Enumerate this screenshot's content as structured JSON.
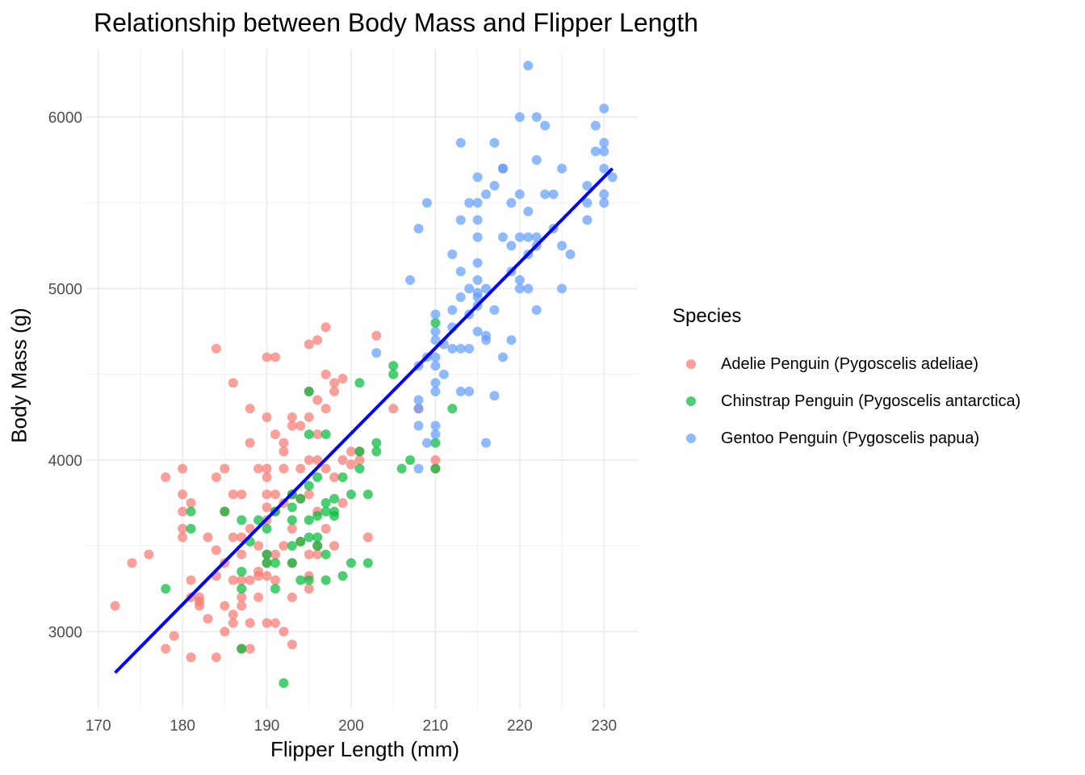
{
  "chart_data": {
    "type": "scatter",
    "title": "Relationship between Body Mass and Flipper Length",
    "xlabel": "Flipper Length (mm)",
    "ylabel": "Body Mass (g)",
    "xlim": [
      168.5,
      234
    ],
    "ylim": [
      2550,
      6400
    ],
    "x_ticks": [
      170,
      180,
      190,
      200,
      210,
      220,
      230
    ],
    "y_ticks": [
      3000,
      4000,
      5000,
      6000
    ],
    "grid": true,
    "legend": {
      "title": "Species",
      "placement": "right"
    },
    "trendline": {
      "type": "linear",
      "color": "#0000ff",
      "points": [
        [
          172,
          2760
        ],
        [
          231,
          5700
        ]
      ]
    },
    "series": [
      {
        "name": "Adelie Penguin (Pygoscelis adeliae)",
        "color": "#f8766d",
        "points": [
          [
            172,
            3150
          ],
          [
            174,
            3400
          ],
          [
            176,
            3450
          ],
          [
            178,
            3900
          ],
          [
            178,
            2900
          ],
          [
            179,
            2975
          ],
          [
            180,
            3950
          ],
          [
            180,
            3800
          ],
          [
            180,
            3700
          ],
          [
            180,
            3550
          ],
          [
            180,
            3600
          ],
          [
            181,
            3750
          ],
          [
            181,
            3300
          ],
          [
            181,
            2850
          ],
          [
            181,
            3200
          ],
          [
            182,
            3175
          ],
          [
            182,
            3150
          ],
          [
            182,
            3200
          ],
          [
            183,
            3550
          ],
          [
            183,
            3075
          ],
          [
            184,
            3900
          ],
          [
            184,
            4650
          ],
          [
            184,
            3475
          ],
          [
            184,
            3325
          ],
          [
            184,
            2850
          ],
          [
            185,
            3950
          ],
          [
            185,
            3700
          ],
          [
            185,
            3400
          ],
          [
            185,
            3150
          ],
          [
            185,
            3000
          ],
          [
            186,
            4450
          ],
          [
            186,
            3800
          ],
          [
            186,
            3550
          ],
          [
            186,
            3300
          ],
          [
            186,
            3100
          ],
          [
            186,
            3050
          ],
          [
            187,
            3800
          ],
          [
            187,
            3550
          ],
          [
            187,
            3450
          ],
          [
            187,
            3300
          ],
          [
            187,
            3200
          ],
          [
            187,
            3150
          ],
          [
            187,
            2900
          ],
          [
            188,
            4300
          ],
          [
            188,
            4100
          ],
          [
            188,
            3600
          ],
          [
            188,
            3300
          ],
          [
            188,
            3050
          ],
          [
            188,
            2900
          ],
          [
            189,
            3950
          ],
          [
            189,
            3500
          ],
          [
            189,
            3325
          ],
          [
            189,
            3200
          ],
          [
            189,
            3350
          ],
          [
            190,
            4600
          ],
          [
            190,
            4250
          ],
          [
            190,
            3950
          ],
          [
            190,
            3900
          ],
          [
            190,
            3800
          ],
          [
            190,
            3725
          ],
          [
            190,
            3650
          ],
          [
            190,
            3450
          ],
          [
            190,
            3400
          ],
          [
            190,
            3325
          ],
          [
            190,
            3050
          ],
          [
            191,
            4600
          ],
          [
            191,
            4150
          ],
          [
            191,
            3800
          ],
          [
            191,
            3700
          ],
          [
            191,
            3450
          ],
          [
            191,
            3300
          ],
          [
            191,
            3050
          ],
          [
            192,
            4100
          ],
          [
            192,
            4050
          ],
          [
            192,
            3950
          ],
          [
            192,
            3750
          ],
          [
            192,
            3500
          ],
          [
            192,
            3000
          ],
          [
            193,
            4250
          ],
          [
            193,
            4200
          ],
          [
            193,
            3800
          ],
          [
            193,
            3600
          ],
          [
            193,
            3400
          ],
          [
            193,
            3200
          ],
          [
            193,
            2925
          ],
          [
            194,
            4200
          ],
          [
            194,
            3950
          ],
          [
            194,
            3775
          ],
          [
            194,
            3525
          ],
          [
            195,
            4675
          ],
          [
            195,
            4400
          ],
          [
            195,
            4250
          ],
          [
            195,
            4000
          ],
          [
            195,
            3800
          ],
          [
            195,
            3450
          ],
          [
            195,
            3325
          ],
          [
            195,
            3250
          ],
          [
            196,
            4700
          ],
          [
            196,
            4350
          ],
          [
            196,
            4150
          ],
          [
            196,
            4000
          ],
          [
            196,
            3700
          ],
          [
            196,
            3500
          ],
          [
            196,
            3450
          ],
          [
            197,
            4775
          ],
          [
            197,
            4500
          ],
          [
            197,
            4300
          ],
          [
            197,
            3950
          ],
          [
            197,
            3600
          ],
          [
            198,
            4450
          ],
          [
            198,
            4400
          ],
          [
            198,
            3900
          ],
          [
            198,
            3500
          ],
          [
            199,
            4475
          ],
          [
            199,
            4000
          ],
          [
            199,
            3750
          ],
          [
            200,
            4050
          ],
          [
            200,
            3975
          ],
          [
            201,
            4050
          ],
          [
            201,
            4000
          ],
          [
            202,
            3550
          ],
          [
            203,
            4725
          ],
          [
            205,
            4300
          ],
          [
            208,
            4300
          ],
          [
            210,
            4000
          ],
          [
            210,
            3950
          ]
        ]
      },
      {
        "name": "Chinstrap Penguin (Pygoscelis antarctica)",
        "color": "#00ba38",
        "points": [
          [
            178,
            3250
          ],
          [
            181,
            3700
          ],
          [
            181,
            3600
          ],
          [
            185,
            3700
          ],
          [
            187,
            3650
          ],
          [
            187,
            3350
          ],
          [
            187,
            3250
          ],
          [
            187,
            2900
          ],
          [
            188,
            3525
          ],
          [
            189,
            3650
          ],
          [
            190,
            3600
          ],
          [
            190,
            3450
          ],
          [
            190,
            3400
          ],
          [
            191,
            3700
          ],
          [
            191,
            3400
          ],
          [
            191,
            3250
          ],
          [
            192,
            2700
          ],
          [
            193,
            3800
          ],
          [
            193,
            3725
          ],
          [
            193,
            3650
          ],
          [
            193,
            3500
          ],
          [
            193,
            3400
          ],
          [
            194,
            3775
          ],
          [
            194,
            3525
          ],
          [
            194,
            3300
          ],
          [
            195,
            4400
          ],
          [
            195,
            4150
          ],
          [
            195,
            3850
          ],
          [
            195,
            3650
          ],
          [
            195,
            3550
          ],
          [
            195,
            3300
          ],
          [
            196,
            3900
          ],
          [
            196,
            3675
          ],
          [
            196,
            3550
          ],
          [
            196,
            3500
          ],
          [
            197,
            4150
          ],
          [
            197,
            3750
          ],
          [
            197,
            3700
          ],
          [
            197,
            3450
          ],
          [
            197,
            3300
          ],
          [
            198,
            3775
          ],
          [
            198,
            3700
          ],
          [
            198,
            3675
          ],
          [
            199,
            3900
          ],
          [
            199,
            3325
          ],
          [
            200,
            3800
          ],
          [
            200,
            3400
          ],
          [
            201,
            4450
          ],
          [
            201,
            4050
          ],
          [
            201,
            3950
          ],
          [
            202,
            3800
          ],
          [
            202,
            3400
          ],
          [
            203,
            4100
          ],
          [
            203,
            4050
          ],
          [
            205,
            4550
          ],
          [
            205,
            4500
          ],
          [
            206,
            3950
          ],
          [
            207,
            4000
          ],
          [
            210,
            4800
          ],
          [
            210,
            4100
          ],
          [
            210,
            3950
          ],
          [
            212,
            4300
          ]
        ]
      },
      {
        "name": "Gentoo Penguin (Pygoscelis papua)",
        "color": "#619cff",
        "points": [
          [
            203,
            4625
          ],
          [
            207,
            5050
          ],
          [
            208,
            5350
          ],
          [
            208,
            4550
          ],
          [
            208,
            4350
          ],
          [
            208,
            4200
          ],
          [
            208,
            4300
          ],
          [
            208,
            3950
          ],
          [
            209,
            5500
          ],
          [
            209,
            4600
          ],
          [
            209,
            4100
          ],
          [
            210,
            4850
          ],
          [
            210,
            4750
          ],
          [
            210,
            4700
          ],
          [
            210,
            4600
          ],
          [
            210,
            4450
          ],
          [
            210,
            4400
          ],
          [
            210,
            4200
          ],
          [
            210,
            4150
          ],
          [
            210,
            4550
          ],
          [
            211,
            4500
          ],
          [
            211,
            4675
          ],
          [
            212,
            5200
          ],
          [
            212,
            4875
          ],
          [
            212,
            4775
          ],
          [
            212,
            4650
          ],
          [
            213,
            5850
          ],
          [
            213,
            5400
          ],
          [
            213,
            5100
          ],
          [
            213,
            4950
          ],
          [
            213,
            4650
          ],
          [
            213,
            4400
          ],
          [
            214,
            5500
          ],
          [
            214,
            5000
          ],
          [
            214,
            4850
          ],
          [
            214,
            4650
          ],
          [
            214,
            4400
          ],
          [
            215,
            5650
          ],
          [
            215,
            5500
          ],
          [
            215,
            5400
          ],
          [
            215,
            5300
          ],
          [
            215,
            5150
          ],
          [
            215,
            5050
          ],
          [
            215,
            4975
          ],
          [
            215,
            4950
          ],
          [
            215,
            4900
          ],
          [
            215,
            4750
          ],
          [
            216,
            5550
          ],
          [
            216,
            5000
          ],
          [
            216,
            4725
          ],
          [
            216,
            4700
          ],
          [
            216,
            4100
          ],
          [
            217,
            5850
          ],
          [
            217,
            5600
          ],
          [
            217,
            4875
          ],
          [
            217,
            4375
          ],
          [
            218,
            5700
          ],
          [
            218,
            5300
          ],
          [
            218,
            4600
          ],
          [
            218,
            5700
          ],
          [
            219,
            5500
          ],
          [
            219,
            5250
          ],
          [
            219,
            5100
          ],
          [
            219,
            4700
          ],
          [
            220,
            6000
          ],
          [
            220,
            5550
          ],
          [
            220,
            5300
          ],
          [
            220,
            5050
          ],
          [
            220,
            5000
          ],
          [
            221,
            6300
          ],
          [
            221,
            5450
          ],
          [
            221,
            5300
          ],
          [
            221,
            5000
          ],
          [
            221,
            5200
          ],
          [
            222,
            6000
          ],
          [
            222,
            5750
          ],
          [
            222,
            5300
          ],
          [
            222,
            5250
          ],
          [
            222,
            4875
          ],
          [
            223,
            5950
          ],
          [
            223,
            5550
          ],
          [
            224,
            5350
          ],
          [
            224,
            5550
          ],
          [
            225,
            5700
          ],
          [
            225,
            5250
          ],
          [
            225,
            5000
          ],
          [
            226,
            5200
          ],
          [
            228,
            5600
          ],
          [
            228,
            5500
          ],
          [
            228,
            5400
          ],
          [
            229,
            5950
          ],
          [
            229,
            5800
          ],
          [
            230,
            6050
          ],
          [
            230,
            5850
          ],
          [
            230,
            5800
          ],
          [
            230,
            5700
          ],
          [
            230,
            5550
          ],
          [
            230,
            5500
          ],
          [
            231,
            5650
          ]
        ]
      }
    ]
  }
}
